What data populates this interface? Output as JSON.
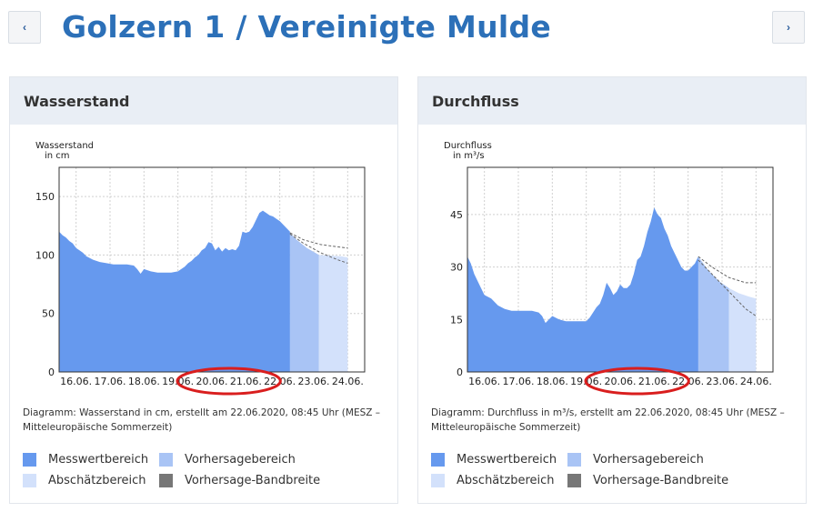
{
  "header": {
    "title": "Golzern 1 / Vereinigte Mulde",
    "prev_label": "‹",
    "next_label": "›"
  },
  "colors": {
    "title": "#2c70b8",
    "measured": "#6699ee",
    "forecast": "#a9c4f5",
    "estimate": "#d3e1fb",
    "band": "#777777",
    "highlight": "#d91e1e"
  },
  "panels": [
    {
      "heading": "Wasserstand",
      "caption": "Diagramm: Wasserstand in cm, erstellt am 22.06.2020, 08:45 Uhr (MESZ – Mitteleuropäische Sommerzeit)",
      "legend": [
        "Messwertbereich",
        "Vorhersagebereich",
        "Abschätzbereich",
        "Vorhersage-Bandbreite"
      ]
    },
    {
      "heading": "Durchfluss",
      "caption": "Diagramm: Durchfluss in m³/s, erstellt am 22.06.2020, 08:45 Uhr (MESZ – Mitteleuropäische Sommerzeit)",
      "legend": [
        "Messwertbereich",
        "Vorhersagebereich",
        "Abschätzbereich",
        "Vorhersage-Bandbreite"
      ]
    }
  ],
  "chart_data": [
    {
      "type": "area",
      "title": "",
      "ylabel": "Wasserstand\nin cm",
      "ylim": [
        0,
        175
      ],
      "yticks": [
        0,
        50,
        100,
        150
      ],
      "xlim": [
        15.5,
        24.5
      ],
      "xticks": [
        "16.06.",
        "17.06.",
        "18.06.",
        "19.06.",
        "20.06.",
        "21.06.",
        "22.06.",
        "23.06.",
        "24.06."
      ],
      "grid": true,
      "highlighted_ticks": [
        "20.06.",
        "21.06."
      ],
      "series": [
        {
          "name": "Messwertbereich",
          "x": [
            15.5,
            15.6,
            15.7,
            15.8,
            15.9,
            16.0,
            16.1,
            16.2,
            16.3,
            16.5,
            16.7,
            16.9,
            17.1,
            17.3,
            17.5,
            17.7,
            17.8,
            17.9,
            18.0,
            18.2,
            18.4,
            18.6,
            18.8,
            19.0,
            19.2,
            19.3,
            19.4,
            19.5,
            19.6,
            19.7,
            19.8,
            19.9,
            20.0,
            20.1,
            20.2,
            20.3,
            20.4,
            20.5,
            20.6,
            20.7,
            20.8,
            20.9,
            21.0,
            21.1,
            21.2,
            21.3,
            21.4,
            21.5,
            21.6,
            21.7,
            21.8,
            21.9,
            22.0,
            22.1,
            22.2,
            22.3
          ],
          "y": [
            120,
            117,
            115,
            112,
            110,
            106,
            104,
            102,
            99,
            96,
            94,
            93,
            92,
            92,
            92,
            91,
            88,
            84,
            88,
            86,
            85,
            85,
            85,
            86,
            90,
            93,
            95,
            98,
            100,
            104,
            106,
            111,
            110,
            104,
            107,
            103,
            106,
            104,
            105,
            104,
            108,
            120,
            119,
            120,
            124,
            130,
            136,
            138,
            136,
            134,
            133,
            131,
            129,
            126,
            123,
            120
          ]
        },
        {
          "name": "Vorhersagebereich",
          "x": [
            22.3,
            22.5,
            22.8,
            23.1,
            23.15
          ],
          "y": [
            119,
            113,
            106,
            101,
            100
          ]
        },
        {
          "name": "Abschätzbereich",
          "x": [
            23.15,
            23.5,
            23.8,
            24.0
          ],
          "y": [
            100,
            99.5,
            99,
            98
          ]
        },
        {
          "name": "Vorhersage-Bandbreite",
          "upper": {
            "x": [
              22.3,
              22.7,
              23.2,
              23.7,
              24.0
            ],
            "y": [
              119,
              113,
              109,
              107,
              106
            ]
          },
          "lower": {
            "x": [
              22.3,
              22.7,
              23.2,
              23.7,
              24.0
            ],
            "y": [
              118,
              110,
              102,
              96,
              93
            ]
          }
        }
      ]
    },
    {
      "type": "area",
      "title": "",
      "ylabel": "Durchfluss\nin m³/s",
      "ylim": [
        0,
        58.5
      ],
      "yticks": [
        0,
        15,
        30,
        45
      ],
      "xlim": [
        15.5,
        24.5
      ],
      "xticks": [
        "16.06.",
        "17.06.",
        "18.06.",
        "19.06.",
        "20.06.",
        "21.06.",
        "22.06.",
        "23.06.",
        "24.06."
      ],
      "grid": true,
      "highlighted_ticks": [
        "20.06.",
        "21.06."
      ],
      "series": [
        {
          "name": "Messwertbereich",
          "x": [
            15.5,
            15.6,
            15.7,
            15.8,
            15.9,
            16.0,
            16.2,
            16.4,
            16.6,
            16.8,
            17.0,
            17.2,
            17.4,
            17.6,
            17.7,
            17.8,
            18.0,
            18.2,
            18.4,
            18.6,
            18.8,
            19.0,
            19.1,
            19.2,
            19.3,
            19.4,
            19.5,
            19.6,
            19.7,
            19.8,
            19.9,
            20.0,
            20.1,
            20.2,
            20.3,
            20.4,
            20.5,
            20.6,
            20.7,
            20.8,
            20.9,
            21.0,
            21.1,
            21.2,
            21.3,
            21.4,
            21.5,
            21.6,
            21.7,
            21.8,
            21.9,
            22.0,
            22.1,
            22.2,
            22.3
          ],
          "y": [
            33,
            31,
            28,
            26,
            24,
            22,
            21,
            19,
            18,
            17.5,
            17.5,
            17.5,
            17.5,
            17,
            16,
            14,
            16,
            15,
            14.5,
            14.5,
            14.5,
            14.5,
            15.5,
            17,
            18.5,
            19.5,
            22,
            25.5,
            24,
            22,
            23,
            25,
            24,
            24,
            25,
            28,
            32,
            33,
            36,
            40,
            43,
            47,
            45,
            44,
            41,
            39,
            36,
            34,
            32,
            30,
            29,
            29,
            30,
            31,
            33
          ]
        },
        {
          "name": "Vorhersagebereich",
          "x": [
            22.3,
            22.6,
            22.9,
            23.2
          ],
          "y": [
            33,
            29,
            26,
            24
          ]
        },
        {
          "name": "Abschätzbereich",
          "x": [
            23.2,
            23.5,
            23.8,
            24.0
          ],
          "y": [
            24,
            22.5,
            21.5,
            21
          ]
        },
        {
          "name": "Vorhersage-Bandbreite",
          "upper": {
            "x": [
              22.3,
              22.7,
              23.2,
              23.7,
              24.0
            ],
            "y": [
              33,
              30,
              27,
              25.5,
              25.5
            ]
          },
          "lower": {
            "x": [
              22.3,
              22.7,
              23.2,
              23.7,
              24.0
            ],
            "y": [
              32,
              28,
              23,
              18,
              16
            ]
          }
        }
      ]
    }
  ]
}
